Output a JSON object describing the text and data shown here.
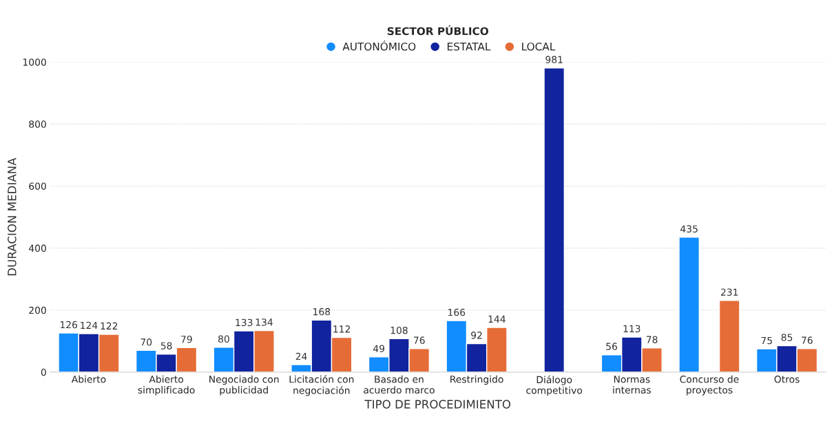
{
  "chart_data": {
    "type": "bar",
    "xlabel": "TIPO DE PROCEDIMIENTO",
    "ylabel": "DURACION MEDIANA",
    "legend_title": "SECTOR PÚBLICO",
    "categories": [
      "Abierto",
      "Abierto\nsimplificado",
      "Negociado con\npublicidad",
      "Licitación con\nnegociación",
      "Basado en\nacuerdo marco",
      "Restringido",
      "Diálogo\ncompetitivo",
      "Normas\ninternas",
      "Concurso de\nproyectos",
      "Otros"
    ],
    "series": [
      {
        "name": "AUTONÓMICO",
        "color": "#118dff",
        "values": [
          126,
          70,
          80,
          24,
          49,
          166,
          null,
          56,
          435,
          75
        ]
      },
      {
        "name": "ESTATAL",
        "color": "#12239e",
        "values": [
          124,
          58,
          133,
          168,
          108,
          92,
          981,
          113,
          null,
          85
        ]
      },
      {
        "name": "LOCAL",
        "color": "#e66c37",
        "values": [
          122,
          79,
          134,
          112,
          76,
          144,
          null,
          78,
          231,
          76
        ]
      }
    ],
    "ylim": [
      0,
      1000
    ],
    "yticks": [
      0,
      200,
      400,
      600,
      800,
      1000
    ],
    "grid": "y",
    "legend": "top",
    "data_labels": true
  }
}
